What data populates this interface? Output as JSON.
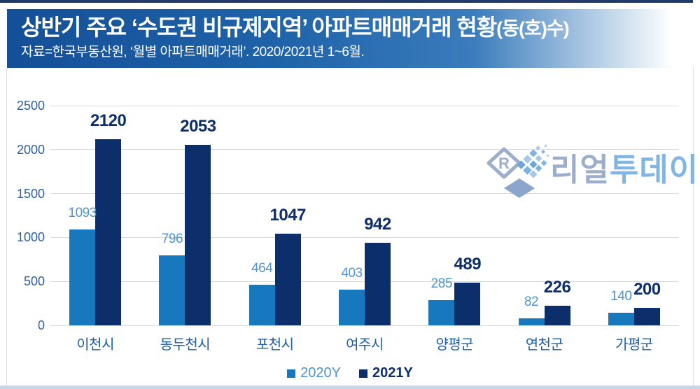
{
  "page": {
    "top_accent_color": "#203A6C",
    "bottom_accent_color": "#C9D6E6"
  },
  "header": {
    "title": "상반기 주요 ‘수도권 비규제지역’ 아파트매매거래 현황",
    "title_suffix": "(동(호)수)",
    "subtitle": "자료=한국부동산원, ‘월별 아파트매매거래’. 2020/2021년 1~6월."
  },
  "watermark": {
    "brand": "리얼투데이",
    "text_part1": "리얼",
    "text_part2": "투데이",
    "color_gray": "#9DAECB",
    "color_blue": "#82B6E2"
  },
  "chart_data": {
    "type": "bar",
    "title": "상반기 주요 ‘수도권 비규제지역’ 아파트매매거래 현황(동(호)수)",
    "categories": [
      "이천시",
      "동두천시",
      "포천시",
      "여주시",
      "양평군",
      "연천군",
      "가평군"
    ],
    "series": [
      {
        "name": "2020Y",
        "color": "#1878BE",
        "label_color": "#4E94CE",
        "values": [
          1093,
          796,
          464,
          403,
          285,
          82,
          140
        ]
      },
      {
        "name": "2021Y",
        "color": "#0C2F6B",
        "label_color": "#0C2F6B",
        "values": [
          2120,
          2053,
          1047,
          942,
          489,
          226,
          200
        ]
      }
    ],
    "ylim": [
      0,
      2500
    ],
    "yticks": [
      0,
      500,
      1000,
      1500,
      2000,
      2500
    ],
    "grid": true,
    "gridline_color": "#D9D9D9",
    "axis_label_color": "#2D5FA3",
    "category_label_color": "#1D5FA9",
    "legend_position": "bottom"
  }
}
